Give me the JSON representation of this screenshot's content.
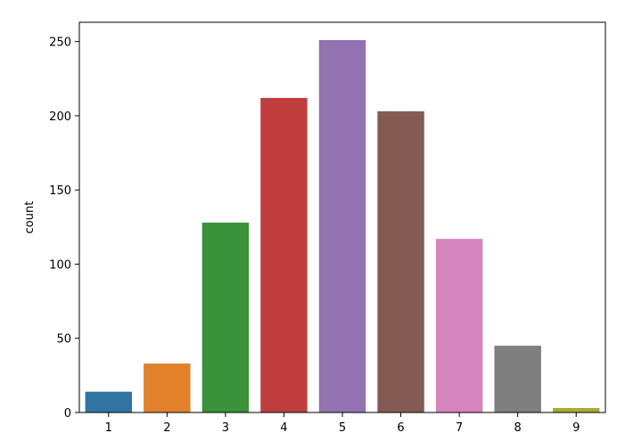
{
  "chart_data": {
    "type": "bar",
    "title": "",
    "xlabel": "",
    "ylabel": "count",
    "categories": [
      "1",
      "2",
      "3",
      "4",
      "5",
      "6",
      "7",
      "8",
      "9"
    ],
    "values": [
      14,
      33,
      128,
      212,
      251,
      203,
      117,
      45,
      3
    ],
    "colors": [
      "#3274a1",
      "#e1812c",
      "#3a923a",
      "#c03d3e",
      "#9372b2",
      "#845b53",
      "#d684bd",
      "#7f7f7f",
      "#a9aa35"
    ],
    "yticks": [
      0,
      50,
      100,
      150,
      200,
      250
    ],
    "ylim": [
      0,
      263
    ],
    "grid": false,
    "legend": "none"
  }
}
